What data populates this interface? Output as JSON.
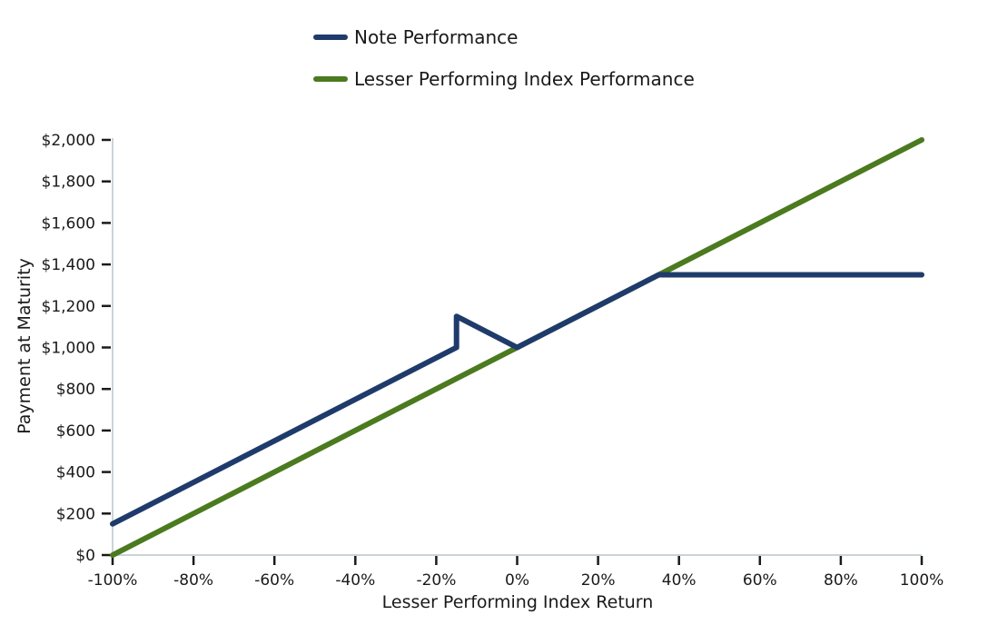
{
  "chart_data": {
    "type": "line",
    "xlabel": "Lesser Performing Index Return",
    "ylabel": "Payment at Maturity",
    "xlim": [
      -100,
      100
    ],
    "ylim": [
      0,
      2000
    ],
    "x_ticks": [
      -100,
      -80,
      -60,
      -40,
      -20,
      0,
      20,
      40,
      60,
      80,
      100
    ],
    "x_tick_labels": [
      "-100%",
      "-80%",
      "-60%",
      "-40%",
      "-20%",
      "0%",
      "20%",
      "40%",
      "60%",
      "80%",
      "100%"
    ],
    "y_ticks": [
      0,
      200,
      400,
      600,
      800,
      1000,
      1200,
      1400,
      1600,
      1800,
      2000
    ],
    "y_tick_labels": [
      "$0",
      "$200",
      "$400",
      "$600",
      "$800",
      "$1,000",
      "$1,200",
      "$1,400",
      "$1,600",
      "$1,800",
      "$2,000"
    ],
    "legend_position": "top-center",
    "grid": false,
    "series": [
      {
        "name": "Note Performance",
        "color": "#1f3b6b",
        "x": [
          -100,
          -15,
          -15,
          0,
          35,
          100
        ],
        "y": [
          150,
          1000,
          1150,
          1000,
          1350,
          1350
        ]
      },
      {
        "name": "Lesser Performing Index Performance",
        "color": "#4b7a1f",
        "x": [
          -100,
          100
        ],
        "y": [
          0,
          2000
        ]
      }
    ]
  }
}
